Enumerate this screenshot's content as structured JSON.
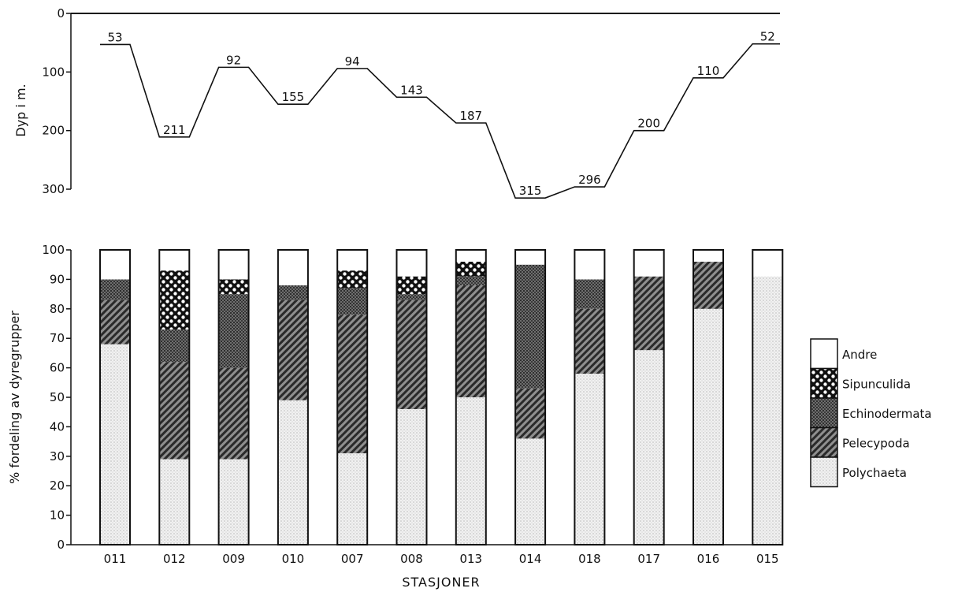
{
  "chart_data": [
    {
      "type": "line",
      "ylabel": "Dyp i m.",
      "ylim": [
        0,
        300
      ],
      "yticks": [
        0,
        100,
        200,
        300
      ],
      "y_inverted": true,
      "categories": [
        "011",
        "012",
        "009",
        "010",
        "007",
        "008",
        "013",
        "014",
        "018",
        "017",
        "016",
        "015"
      ],
      "values": [
        53,
        211,
        92,
        155,
        94,
        143,
        187,
        315,
        296,
        200,
        110,
        52
      ],
      "labels": [
        "53",
        "211",
        "92",
        "155",
        "94",
        "143",
        "187",
        "315",
        "296",
        "200",
        "110",
        "52"
      ],
      "line_color": "#111111"
    },
    {
      "type": "bar",
      "stacked": true,
      "xlabel": "STASJONER",
      "ylabel": "% fordeling av dyregrupper",
      "ylim": [
        0,
        100
      ],
      "yticks": [
        0,
        10,
        20,
        30,
        40,
        50,
        60,
        70,
        80,
        90,
        100
      ],
      "categories": [
        "011",
        "012",
        "009",
        "010",
        "007",
        "008",
        "013",
        "014",
        "018",
        "017",
        "016",
        "015"
      ],
      "series": [
        {
          "name": "Polychaeta",
          "pattern": "dots",
          "values": [
            68,
            29,
            29,
            49,
            31,
            46,
            50,
            36,
            58,
            66,
            80,
            91
          ]
        },
        {
          "name": "Pelecypoda",
          "pattern": "diagonal",
          "values": [
            15,
            33,
            31,
            34,
            47,
            37,
            38,
            17,
            22,
            25,
            16,
            0
          ]
        },
        {
          "name": "Echinodermata",
          "pattern": "grid",
          "values": [
            7,
            11,
            25,
            5,
            9,
            2,
            3,
            42,
            10,
            0,
            0,
            0
          ]
        },
        {
          "name": "Sipunculida",
          "pattern": "circles",
          "values": [
            0,
            20,
            5,
            0,
            6,
            6,
            5,
            0,
            0,
            0,
            0,
            0
          ]
        },
        {
          "name": "Andre",
          "pattern": "blank",
          "values": [
            10,
            7,
            10,
            12,
            7,
            9,
            4,
            6,
            10,
            9,
            4,
            9
          ]
        }
      ],
      "legend_position": "right"
    }
  ]
}
